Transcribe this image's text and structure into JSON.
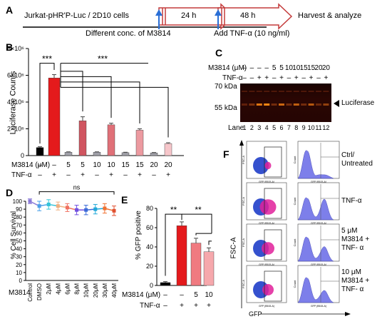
{
  "panel_a": {
    "label": "A",
    "cells": "Jurkat-pHR'P-Luc / 2D10 cells",
    "step1": "Different conc. of M3814",
    "step2": "Add TNF-α (10 ng/ml)",
    "time1": "24 h",
    "time2": "48 h",
    "final": "Harvest & analyze"
  },
  "panel_b": {
    "label": "B",
    "ylabel": "Luciferase Counts",
    "row1_label": "M3814 (μM)",
    "row2_label": "TNF-α",
    "m3814_row": [
      "–",
      "–",
      "5",
      "5",
      "10",
      "10",
      "15",
      "15",
      "20",
      "20"
    ],
    "tnf_row": [
      "–",
      "+",
      "–",
      "+",
      "–",
      "+",
      "–",
      "+",
      "–",
      "+"
    ],
    "sig": "***"
  },
  "panel_c": {
    "label": "C",
    "row1_label": "M3814 (μM)",
    "row2_label": "TNF-α",
    "m3814_row": [
      "–",
      "–",
      "–",
      "–",
      "5",
      "5",
      "10",
      "10",
      "15",
      "15",
      "20",
      "20"
    ],
    "tnf_row": [
      "–",
      "–",
      "+",
      "+",
      "–",
      "+",
      "–",
      "+",
      "–",
      "+",
      "–",
      "+"
    ],
    "kda70": "70 kDa",
    "kda55": "55 kDa",
    "band": "Luciferase",
    "lane_label": "Lane",
    "lanes": [
      "1",
      "2",
      "3",
      "4",
      "5",
      "6",
      "7",
      "8",
      "9",
      "10",
      "11",
      "12"
    ]
  },
  "panel_d": {
    "label": "D",
    "ylabel": "% Cell Survival",
    "xrow_label": "M3814",
    "ns": "ns"
  },
  "panel_e": {
    "label": "E",
    "ylabel": "% GFP positive",
    "row1_label": "M3814 (μM)",
    "row2_label": "TNF-α",
    "m3814_row": [
      "–",
      "–",
      "5",
      "10"
    ],
    "tnf_row": [
      "–",
      "+",
      "+",
      "+"
    ],
    "sig": "**"
  },
  "panel_f": {
    "label": "F",
    "side_ylabel": "FSC-A",
    "xlabel": "GFP",
    "rows": [
      {
        "label_lines": [
          "Ctrl/",
          "Untreated"
        ]
      },
      {
        "label_lines": [
          "TNF-α"
        ]
      },
      {
        "label_lines": [
          "5 μM",
          "M3814 +",
          "TNF- α"
        ]
      },
      {
        "label_lines": [
          "10 μM",
          "M3814 +",
          "TNF- α"
        ]
      }
    ]
  },
  "chart_data": [
    {
      "type": "bar",
      "panel": "B",
      "categories": [
        "–/–",
        "–/+",
        "5/–",
        "5/+",
        "10/–",
        "10/+",
        "15/–",
        "15/+",
        "20/–",
        "20/+"
      ],
      "values": [
        600000,
        5800000,
        250000,
        2600000,
        250000,
        2300000,
        220000,
        1900000,
        200000,
        900000
      ],
      "errors": [
        60000,
        250000,
        30000,
        300000,
        30000,
        120000,
        30000,
        100000,
        30000,
        60000
      ],
      "colors": [
        "#000000",
        "#e41a1c",
        "#a0a0a8",
        "#d05560",
        "#a0a0a8",
        "#e07078",
        "#a0a0a8",
        "#ec9aa0",
        "#a0a0a8",
        "#f6c6ca"
      ],
      "ylabel": "Luciferase Counts",
      "ylim": [
        0,
        8000000
      ],
      "yticks": [
        0,
        2000000,
        4000000,
        6000000,
        8000000
      ],
      "ytick_labels": [
        "0",
        "2×10⁶",
        "4×10⁶",
        "6×10⁶",
        "8×10⁶"
      ]
    },
    {
      "type": "line",
      "panel": "D",
      "categories": [
        "Control",
        "DMSO",
        "2μM",
        "4μM",
        "6μM",
        "8μM",
        "10μM",
        "20μM",
        "30μM",
        "40μM"
      ],
      "values": [
        100,
        94,
        96,
        94,
        92,
        89,
        89,
        90,
        91,
        88
      ],
      "errors": [
        3,
        6,
        6,
        5,
        5,
        6,
        6,
        6,
        6,
        6
      ],
      "colors": [
        "#8a7ad8",
        "#4aa0e8",
        "#33c3d8",
        "#f0b080",
        "#f07060",
        "#7050e0",
        "#3a6ad8",
        "#20a8d8",
        "#f07030",
        "#e05030"
      ],
      "ylabel": "% Cell Survival",
      "ylim": [
        0,
        100
      ],
      "yticks": [
        0,
        10,
        20,
        30,
        40,
        50,
        60,
        70,
        80,
        90,
        100
      ],
      "annotation": "ns"
    },
    {
      "type": "bar",
      "panel": "E",
      "categories": [
        "–/–",
        "–/+",
        "5/+",
        "10/+"
      ],
      "values": [
        3,
        62,
        44,
        35
      ],
      "errors": [
        1,
        4,
        5,
        4
      ],
      "colors": [
        "#000000",
        "#e41a1c",
        "#f07a80",
        "#f6a8ac"
      ],
      "ylabel": "% GFP positive",
      "ylim": [
        0,
        80
      ],
      "yticks": [
        0,
        20,
        40,
        60,
        80
      ]
    }
  ]
}
